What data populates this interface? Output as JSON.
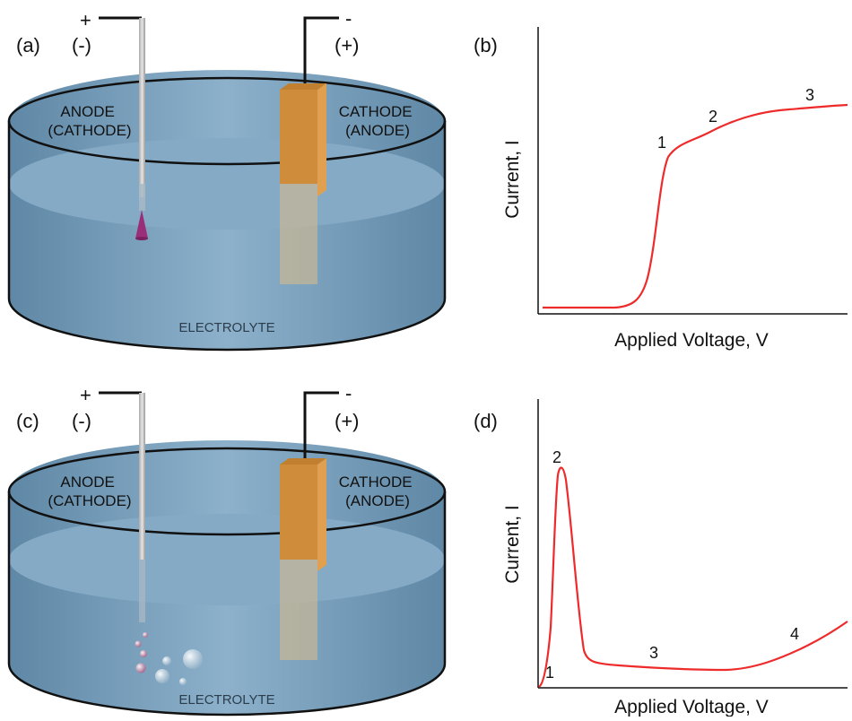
{
  "panels": {
    "a": {
      "panel_label": "(a)",
      "left_sign": "+",
      "left_polarity": "(-)",
      "right_sign": "-",
      "right_polarity": "(+)",
      "left_electrode": [
        "ANODE",
        "(CATHODE)"
      ],
      "right_electrode": [
        "CATHODE",
        "(ANODE)"
      ],
      "electrolyte": "ELECTROLYTE"
    },
    "b": {
      "panel_label": "(b)",
      "xlabel": "Applied Voltage, V",
      "ylabel": "Current, I",
      "point_labels": [
        "1",
        "2",
        "3"
      ]
    },
    "c": {
      "panel_label": "(c)",
      "left_sign": "+",
      "left_polarity": "(-)",
      "right_sign": "-",
      "right_polarity": "(+)",
      "left_electrode": [
        "ANODE",
        "(CATHODE)"
      ],
      "right_electrode": [
        "CATHODE",
        "(ANODE)"
      ],
      "electrolyte": "ELECTROLYTE"
    },
    "d": {
      "panel_label": "(d)",
      "xlabel": "Applied Voltage, V",
      "ylabel": "Current, I",
      "point_labels": [
        "1",
        "2",
        "3",
        "4"
      ]
    }
  },
  "colors": {
    "curve": "#ee2a2a",
    "electrolyte": "#7ea6c2",
    "copper": "#d8963e",
    "tip": "#9a2e78"
  }
}
